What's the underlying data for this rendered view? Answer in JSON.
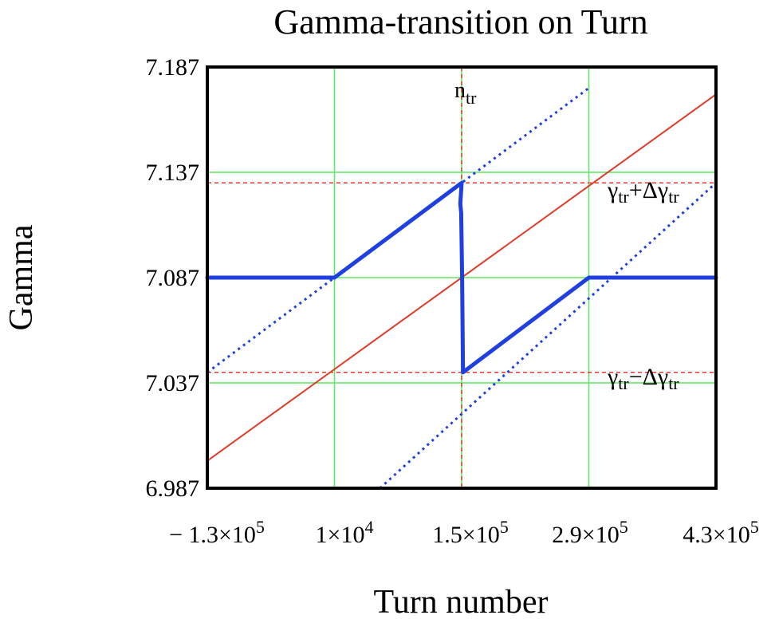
{
  "chart_data": {
    "type": "line",
    "title": "Gamma-transition on Turn",
    "xlabel": "Turn number",
    "ylabel": "Gamma",
    "xlim": [
      -130000,
      430000
    ],
    "ylim": [
      6.987,
      7.187
    ],
    "grid": true,
    "x_ticks": [
      {
        "value": -130000,
        "label": "− 1.3×10",
        "exp": "5"
      },
      {
        "value": 10000,
        "label": "1×10",
        "exp": "4"
      },
      {
        "value": 150000,
        "label": "1.5×10",
        "exp": "5"
      },
      {
        "value": 290000,
        "label": "2.9×10",
        "exp": "5"
      },
      {
        "value": 430000,
        "label": "4.3×10",
        "exp": "5"
      }
    ],
    "y_ticks": [
      {
        "value": 6.987,
        "label": "6.987"
      },
      {
        "value": 7.037,
        "label": "7.037"
      },
      {
        "value": 7.087,
        "label": "7.087"
      },
      {
        "value": 7.137,
        "label": "7.137"
      },
      {
        "value": 7.187,
        "label": "7.187"
      }
    ],
    "series": [
      {
        "key": "gamma_beam",
        "style": "solid",
        "width": 5,
        "color": "#1f3fe0",
        "x": [
          -130000,
          10000,
          150000,
          148500,
          149500,
          150500,
          151500,
          290000,
          430000
        ],
        "y": [
          7.087,
          7.087,
          7.132,
          7.122,
          7.118,
          7.087,
          7.042,
          7.087,
          7.087
        ]
      },
      {
        "key": "gamma_plus_offset",
        "style": "dotted",
        "width": 3,
        "color": "#1f3fe0",
        "x": [
          -130000,
          290000
        ],
        "y": [
          7.042,
          7.177
        ]
      },
      {
        "key": "gamma_minus_offset",
        "style": "dotted",
        "width": 3,
        "color": "#1f3fe0",
        "x": [
          60000,
          430000
        ],
        "y": [
          6.987,
          7.132
        ]
      },
      {
        "key": "gamma_tr",
        "style": "solid",
        "width": 2,
        "color": "#e03a2a",
        "x": [
          -130000,
          430000
        ],
        "y": [
          7.0,
          7.174
        ]
      }
    ],
    "reference_lines": {
      "vertical": {
        "x": 150000,
        "label_main": "n",
        "label_sub": "tr"
      },
      "horizontal": [
        {
          "y": 7.132,
          "label_main": "γ",
          "label_sub": "tr",
          "label_op": "+Δγ",
          "label_sub2": "tr"
        },
        {
          "y": 7.042,
          "label_main": "γ",
          "label_sub": "tr",
          "label_op": "−Δγ",
          "label_sub2": "tr"
        }
      ],
      "color": "#e03a2a"
    },
    "colors": {
      "grid": "#5ee65e",
      "frame": "#000000",
      "beam": "#1f3fe0",
      "transition": "#e03a2a"
    }
  }
}
